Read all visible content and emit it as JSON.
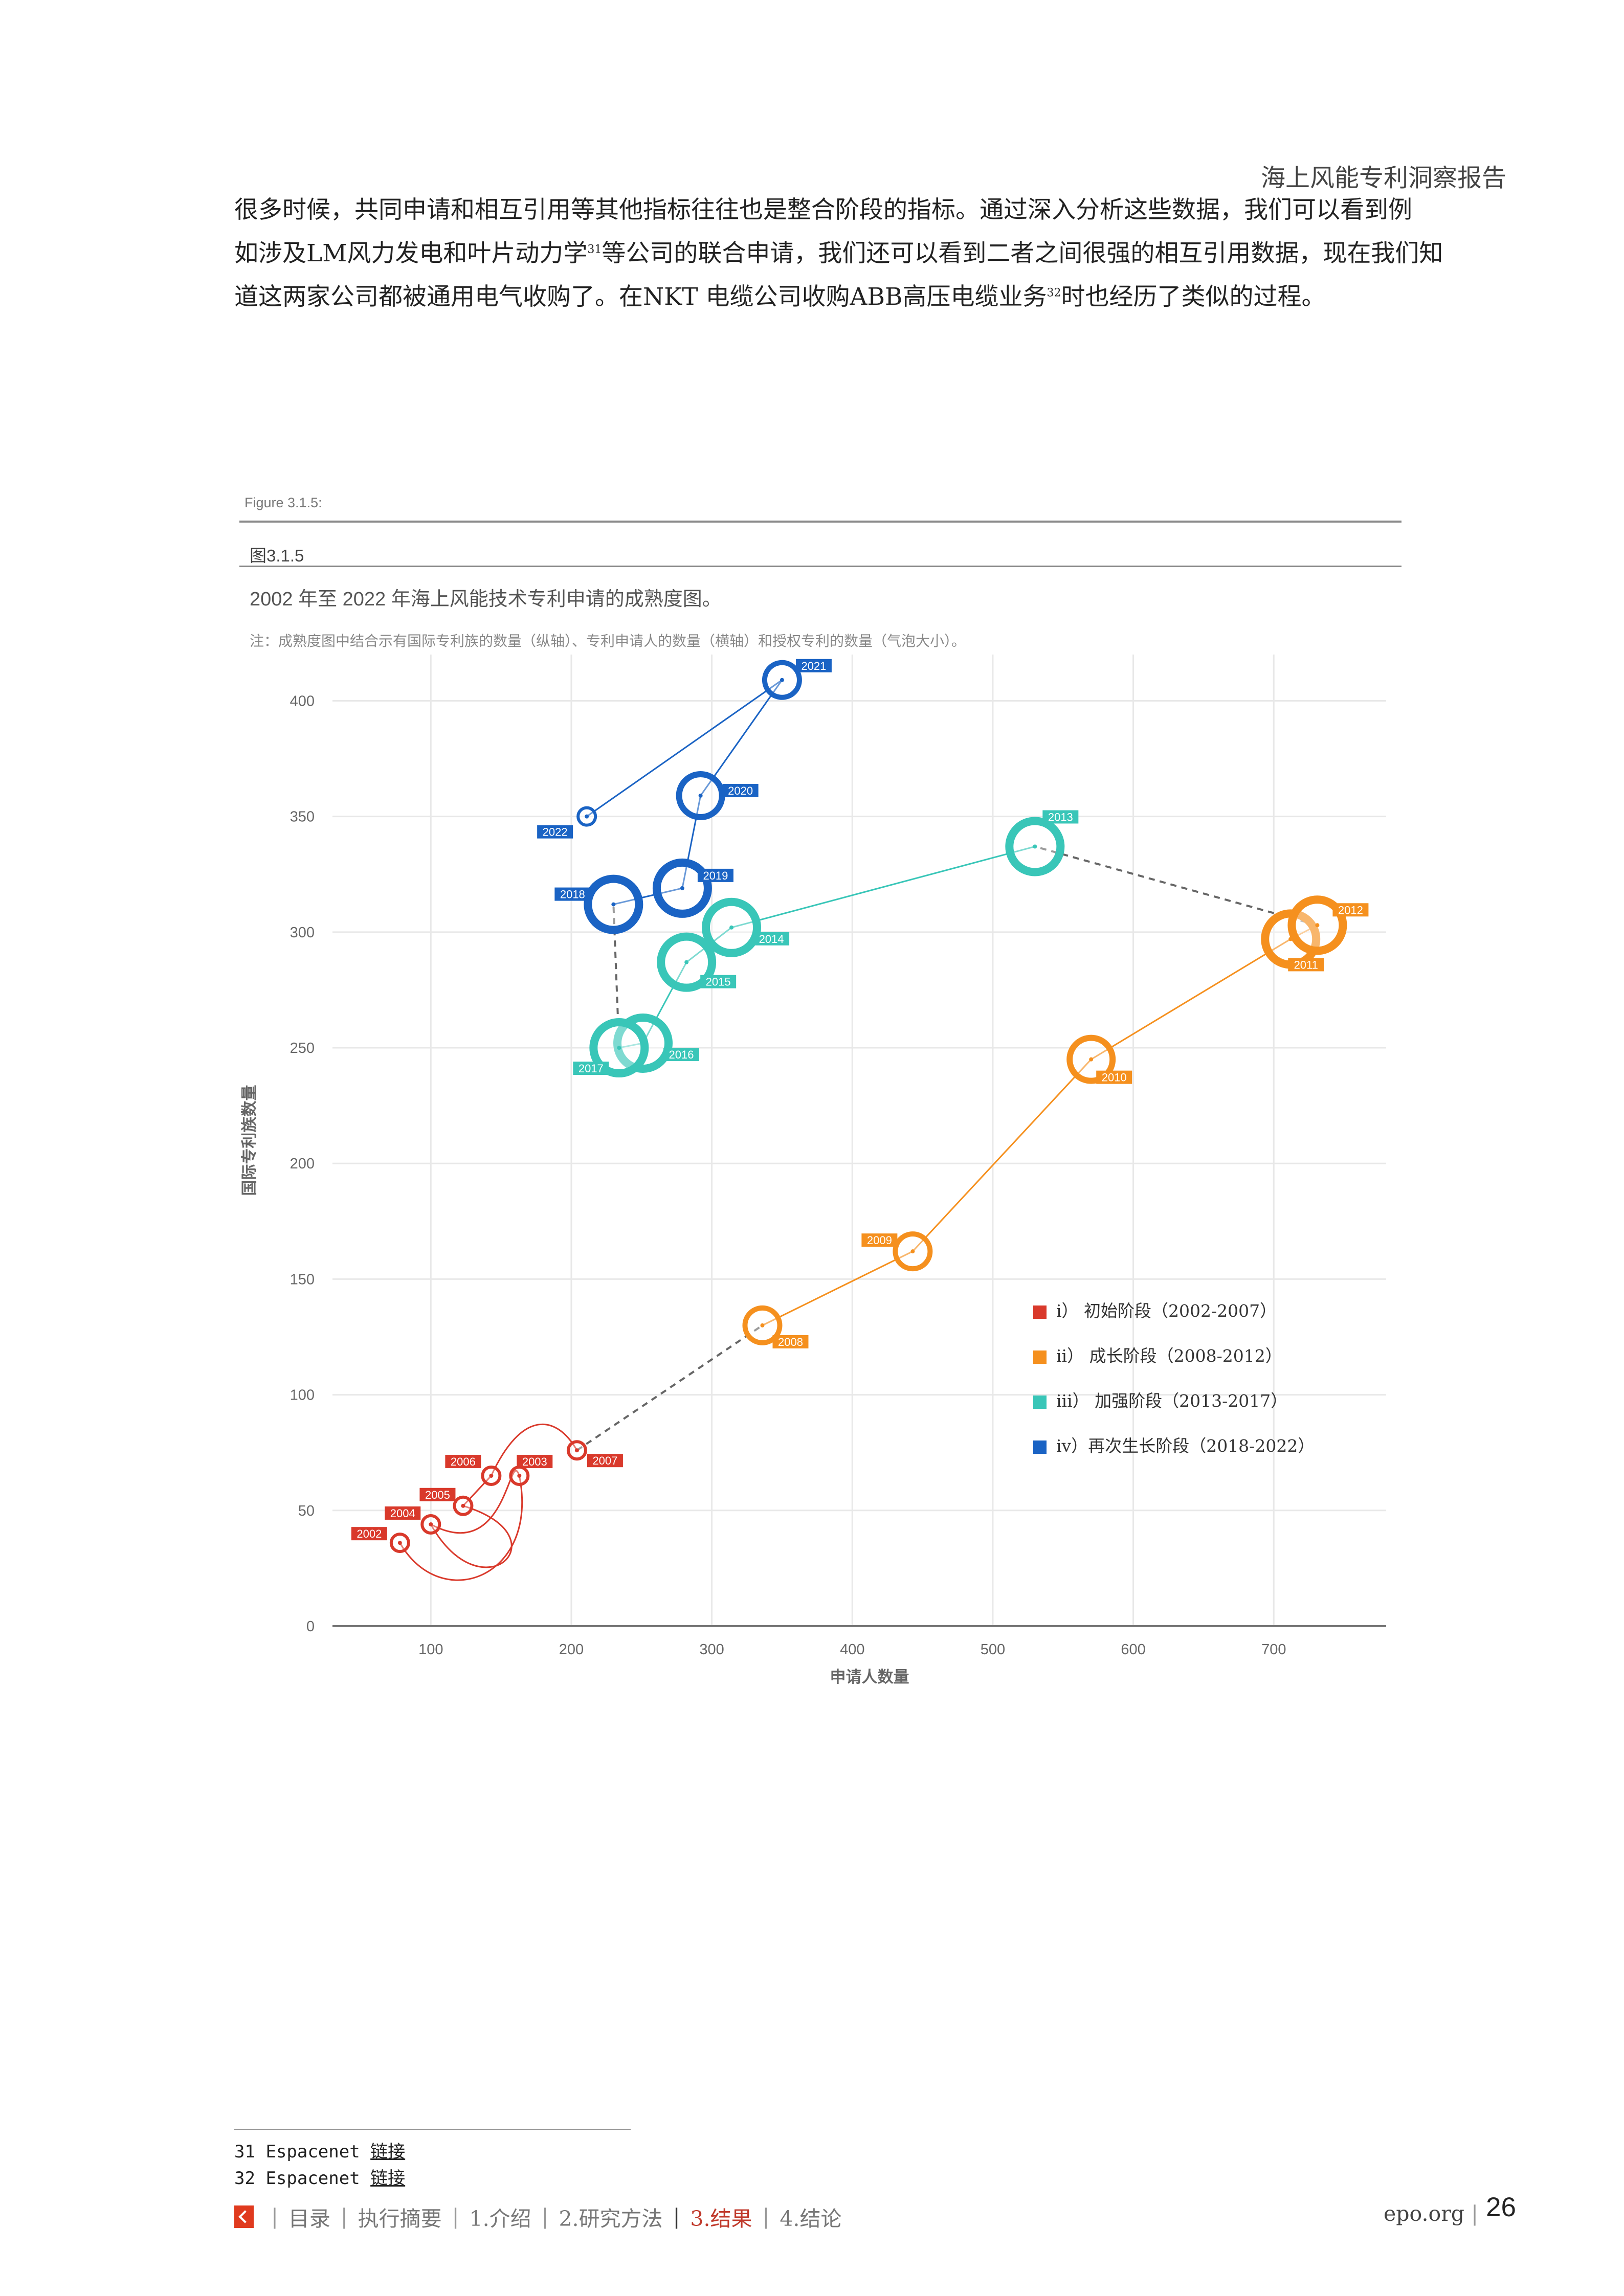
{
  "header": {
    "title": "海上风能专利洞察报告"
  },
  "body": {
    "line1": "很多时候，共同申请和相互引用等其他指标往往也是整合阶段的指标。通过深入分析这些数据，我们可以看到例",
    "line2a": "如涉及LM风力发电和叶片动力学",
    "line2_ref": "31",
    "line2b": "等公司的联合申请，我们还可以看到二者之间很强的相互引用数据，现在我们知",
    "line3a": "道这两家公司都被通用电气收购了。在NKT 电缆公司收购ABB高压电缆业务",
    "line3_ref": "32",
    "line3b": "时也经历了类似的过程。"
  },
  "figure": {
    "label": "Figure 3.1.5:",
    "number": "图3.1.5",
    "title": "2002 年至 2022 年海上风能技术专利申请的成熟度图。",
    "note": "注：成熟度图中结合示有国际专利族的数量（纵轴）、专利申请人的数量（横轴）和授权专利的数量（气泡大小）。"
  },
  "chart_data": {
    "type": "scatter",
    "xlabel": "申请人数量",
    "ylabel": "国际专利族数量",
    "xlim": [
      30,
      780
    ],
    "ylim": [
      0,
      420
    ],
    "xticks": [
      100,
      200,
      300,
      400,
      500,
      600,
      700
    ],
    "yticks": [
      0,
      50,
      100,
      150,
      200,
      250,
      300,
      350,
      400
    ],
    "grid": true,
    "legend_position": "right-middle",
    "colors": {
      "stage1": "#d9392b",
      "stage2": "#f5901e",
      "stage3": "#39c6b8",
      "stage4": "#1a63c4"
    },
    "series": [
      {
        "name": "i） 初始阶段（2002-2007）",
        "color": "#d9392b",
        "points": [
          {
            "year": "2002",
            "x": 78,
            "y": 36,
            "size": 1
          },
          {
            "year": "2003",
            "x": 163,
            "y": 65,
            "size": 1
          },
          {
            "year": "2004",
            "x": 100,
            "y": 44,
            "size": 1
          },
          {
            "year": "2005",
            "x": 123,
            "y": 52,
            "size": 1
          },
          {
            "year": "2006",
            "x": 143,
            "y": 65,
            "size": 1
          },
          {
            "year": "2007",
            "x": 204,
            "y": 76,
            "size": 1
          }
        ]
      },
      {
        "name": "ii） 成长阶段（2008-2012）",
        "color": "#f5901e",
        "points": [
          {
            "year": "2008",
            "x": 336,
            "y": 130,
            "size": 2
          },
          {
            "year": "2009",
            "x": 443,
            "y": 162,
            "size": 2
          },
          {
            "year": "2010",
            "x": 570,
            "y": 245,
            "size": 3
          },
          {
            "year": "2011",
            "x": 712,
            "y": 297,
            "size": 4
          },
          {
            "year": "2012",
            "x": 731,
            "y": 303,
            "size": 4
          }
        ]
      },
      {
        "name": "iii） 加强阶段（2013-2017）",
        "color": "#39c6b8",
        "points": [
          {
            "year": "2013",
            "x": 530,
            "y": 337,
            "size": 4
          },
          {
            "year": "2014",
            "x": 314,
            "y": 302,
            "size": 4
          },
          {
            "year": "2015",
            "x": 282,
            "y": 287,
            "size": 4
          },
          {
            "year": "2016",
            "x": 251,
            "y": 252,
            "size": 4
          },
          {
            "year": "2017",
            "x": 234,
            "y": 250,
            "size": 4
          }
        ]
      },
      {
        "name": "iv）再次生长阶段（2018-2022）",
        "color": "#1a63c4",
        "points": [
          {
            "year": "2018",
            "x": 230,
            "y": 312,
            "size": 4
          },
          {
            "year": "2019",
            "x": 279,
            "y": 319,
            "size": 4
          },
          {
            "year": "2020",
            "x": 292,
            "y": 359,
            "size": 3
          },
          {
            "year": "2021",
            "x": 350,
            "y": 409,
            "size": 2
          },
          {
            "year": "2022",
            "x": 211,
            "y": 350,
            "size": 1
          }
        ]
      }
    ]
  },
  "footnotes": [
    {
      "num": "31",
      "src": "Espacenet",
      "link": "链接"
    },
    {
      "num": "32",
      "src": "Espacenet",
      "link": "链接"
    }
  ],
  "nav": {
    "items": [
      "目录",
      "执行摘要",
      "1.介绍",
      "2.研究方法",
      "3.结果",
      "4.结论"
    ],
    "site": "epo.org",
    "page": "26"
  }
}
